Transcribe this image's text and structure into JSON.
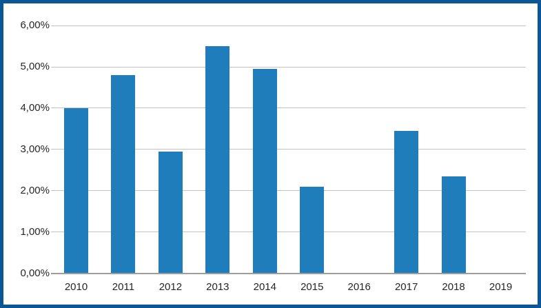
{
  "chart_data": {
    "type": "bar",
    "title": "",
    "xlabel": "",
    "ylabel": "",
    "categories": [
      "2010",
      "2011",
      "2012",
      "2013",
      "2014",
      "2015",
      "2016",
      "2017",
      "2018",
      "2019"
    ],
    "values": [
      4.0,
      4.8,
      2.95,
      5.5,
      4.95,
      2.1,
      0,
      3.45,
      2.35,
      0
    ],
    "ylim": [
      0,
      6
    ],
    "y_ticks": [
      {
        "value": 0,
        "label": "0,00%"
      },
      {
        "value": 1,
        "label": "1,00%"
      },
      {
        "value": 2,
        "label": "2,00%"
      },
      {
        "value": 3,
        "label": "3,00%"
      },
      {
        "value": 4,
        "label": "4,00%"
      },
      {
        "value": 5,
        "label": "5,00%"
      },
      {
        "value": 6,
        "label": "6,00%"
      }
    ],
    "grid": true,
    "legend": false,
    "colors": {
      "bar": "#1F7DBC",
      "frame_border": "#0B5795",
      "gridline": "#C3C3C3",
      "axis_line": "#9D9D9D",
      "tick_text": "#262626",
      "background": "#FFFFFF"
    }
  }
}
